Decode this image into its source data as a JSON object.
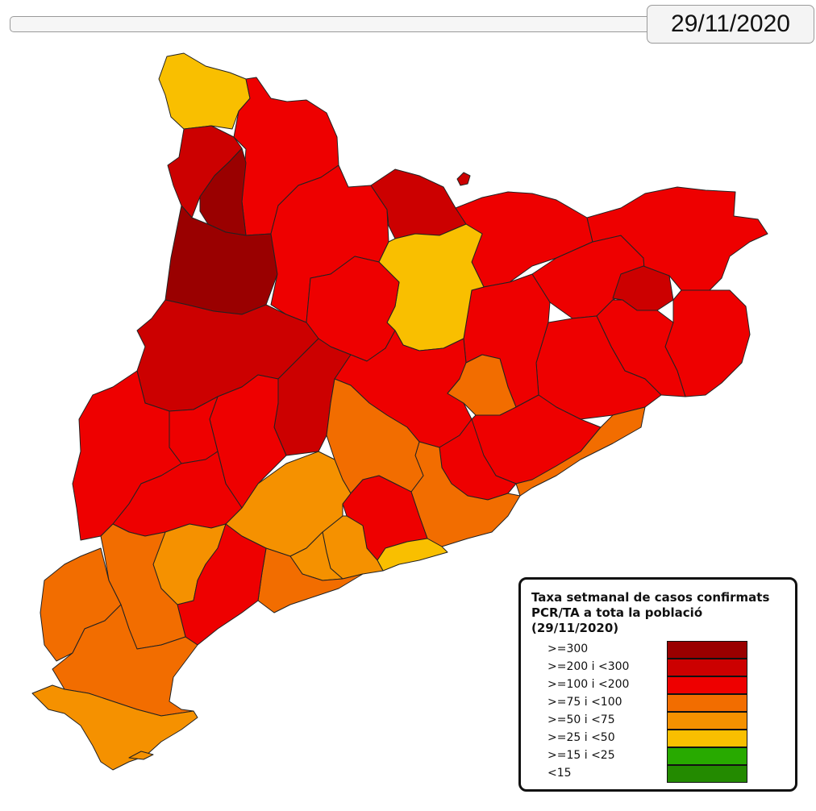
{
  "date_control": {
    "value": "29/11/2020",
    "slider_progress": 1.0
  },
  "legend": {
    "title_lines": [
      "Taxa setmanal de casos confirmats",
      "PCR/TA a tota la població",
      "(29/11/2020)"
    ],
    "items": [
      {
        "label": ">=300",
        "color": "#9a0000"
      },
      {
        "label": ">=200 i <300",
        "color": "#cc0000"
      },
      {
        "label": ">=100 i <200",
        "color": "#ee0000"
      },
      {
        "label": ">=75 i <100",
        "color": "#f26d00"
      },
      {
        "label": ">=50 i <75",
        "color": "#f59100"
      },
      {
        "label": ">=25 i <50",
        "color": "#f9bf00"
      },
      {
        "label": ">=15 i <25",
        "color": "#28aa00"
      },
      {
        "label": "<15",
        "color": "#238a00"
      }
    ]
  },
  "map": {
    "region": "Catalunya",
    "border_color": "#222222",
    "area_counts": {
      ">=300": 2,
      ">=200 i <300": 5,
      ">=100 i <200": 25,
      ">=75 i <100": 6,
      ">=50 i <75": 6,
      ">=25 i <50": 3
    }
  }
}
